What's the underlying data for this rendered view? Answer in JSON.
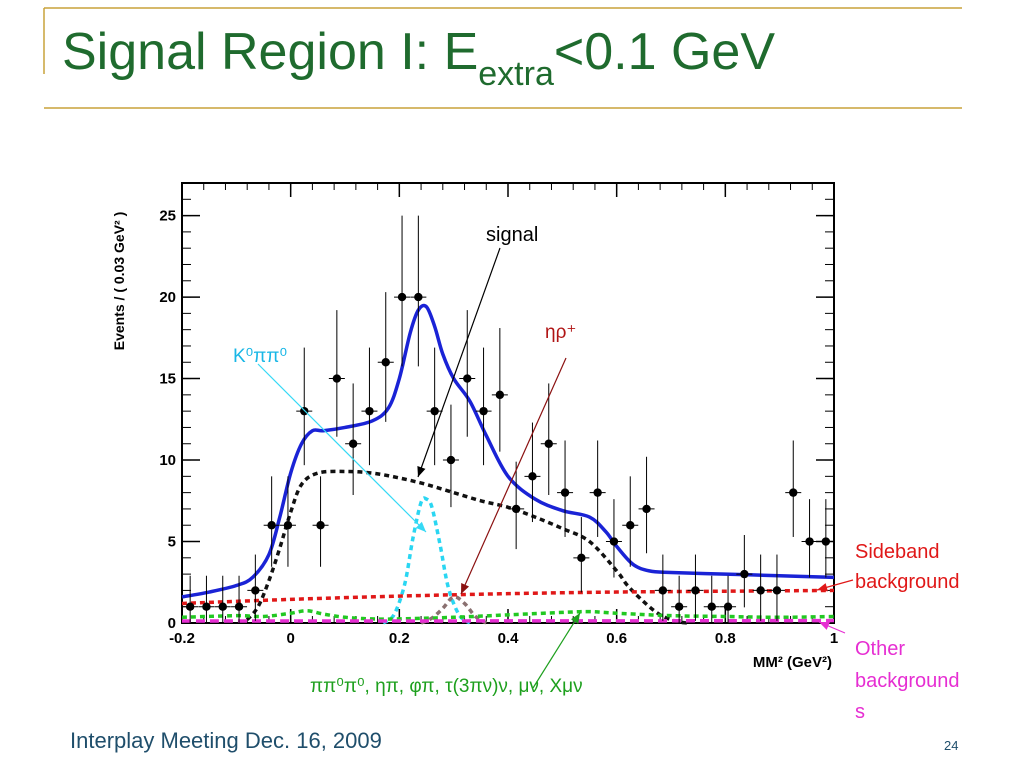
{
  "slide": {
    "title_main": "Signal Region I: E",
    "title_sub": "extra",
    "title_tail": "<0.1 GeV",
    "footer": "Interplay Meeting Dec. 16, 2009",
    "page_number": "24"
  },
  "chart_data": {
    "type": "scatter",
    "xlabel": "MM² (GeV²)",
    "ylabel": "Events / ( 0.03 GeV² )",
    "xlim": [
      -0.2,
      1.0
    ],
    "ylim": [
      0,
      27
    ],
    "xticks": [
      -0.2,
      0,
      0.2,
      0.4,
      0.6,
      0.8,
      1
    ],
    "xtick_labels": [
      "-0.2",
      "0",
      "0.2",
      "0.4",
      "0.6",
      "0.8",
      "1"
    ],
    "yticks": [
      0,
      5,
      10,
      15,
      20,
      25
    ],
    "ytick_labels": [
      "0",
      "5",
      "10",
      "15",
      "20",
      "25"
    ],
    "points": {
      "x": [
        -0.185,
        -0.155,
        -0.125,
        -0.095,
        -0.065,
        -0.035,
        -0.005,
        0.025,
        0.055,
        0.085,
        0.115,
        0.145,
        0.175,
        0.205,
        0.235,
        0.265,
        0.295,
        0.325,
        0.355,
        0.385,
        0.415,
        0.445,
        0.475,
        0.505,
        0.535,
        0.565,
        0.595,
        0.625,
        0.655,
        0.685,
        0.715,
        0.745,
        0.775,
        0.805,
        0.835,
        0.865,
        0.895,
        0.925,
        0.955,
        0.985
      ],
      "y": [
        1,
        1,
        1,
        1,
        2,
        6,
        6,
        13,
        6,
        15,
        11,
        13,
        16,
        20,
        20,
        13,
        10,
        15,
        13,
        14,
        7,
        9,
        11,
        8,
        4,
        8,
        5,
        6,
        7,
        2,
        1,
        2,
        1,
        1,
        3,
        2,
        2,
        8,
        5,
        5
      ],
      "err_hi": [
        1.9,
        1.9,
        1.9,
        1.9,
        2.2,
        3.0,
        3.0,
        3.9,
        3.0,
        4.2,
        3.7,
        3.9,
        4.3,
        5.0,
        5.0,
        3.9,
        3.4,
        4.2,
        3.9,
        4.1,
        2.9,
        3.3,
        3.7,
        3.2,
        2.5,
        3.2,
        2.6,
        3.0,
        3.2,
        2.2,
        1.9,
        2.2,
        1.9,
        1.9,
        2.4,
        2.2,
        2.2,
        3.2,
        2.6,
        2.6
      ]
    },
    "series": [
      {
        "name": "total fit",
        "color": "#1a23d6",
        "style": "solid",
        "x": [
          -0.2,
          -0.15,
          -0.1,
          -0.07,
          -0.04,
          -0.02,
          0,
          0.02,
          0.04,
          0.06,
          0.1,
          0.15,
          0.18,
          0.2,
          0.22,
          0.235,
          0.25,
          0.265,
          0.28,
          0.3,
          0.33,
          0.36,
          0.4,
          0.45,
          0.5,
          0.55,
          0.58,
          0.6,
          0.63,
          0.66,
          0.7,
          0.8,
          0.9,
          1.0
        ],
        "y": [
          1.6,
          1.9,
          2.3,
          2.8,
          4.2,
          6.5,
          9.2,
          11,
          11.8,
          11.8,
          12,
          12.4,
          13.2,
          15,
          17.8,
          19.2,
          19.4,
          18.2,
          16.5,
          15,
          13.6,
          11.5,
          9,
          7.6,
          6.9,
          6.5,
          5.6,
          4.7,
          3.6,
          3.2,
          3.1,
          3.0,
          2.9,
          2.8
        ]
      },
      {
        "name": "signal",
        "color": "#111111",
        "style": "dotted",
        "x": [
          -0.08,
          -0.06,
          -0.04,
          -0.02,
          0,
          0.02,
          0.05,
          0.1,
          0.15,
          0.2,
          0.25,
          0.3,
          0.35,
          0.4,
          0.45,
          0.5,
          0.55,
          0.6,
          0.62,
          0.65,
          0.68,
          0.71,
          0.73
        ],
        "y": [
          0.2,
          1.0,
          2.6,
          4.6,
          6.8,
          8.5,
          9.2,
          9.3,
          9.2,
          8.9,
          8.5,
          8.0,
          7.5,
          7.1,
          6.5,
          5.8,
          5.0,
          3.2,
          2.3,
          1.3,
          0.5,
          0.1,
          0
        ],
        "label": "signal"
      },
      {
        "name": "K0pi0",
        "color": "#2ad6f2",
        "style": "dotted",
        "x": [
          0.17,
          0.19,
          0.21,
          0.225,
          0.24,
          0.25,
          0.26,
          0.275,
          0.29,
          0.31,
          0.33
        ],
        "y": [
          0,
          0.5,
          2.4,
          5.2,
          7.4,
          7.6,
          7.1,
          4.8,
          2.2,
          0.5,
          0
        ],
        "label": "K⁰ππ⁰"
      },
      {
        "name": "eta rho",
        "color": "#8a7070",
        "style": "dotted",
        "x": [
          0.24,
          0.26,
          0.28,
          0.3,
          0.32,
          0.34,
          0.36
        ],
        "y": [
          0,
          0.3,
          0.9,
          1.6,
          1.2,
          0.4,
          0
        ],
        "label": "ηρ⁺"
      },
      {
        "name": "sideband background",
        "color": "#e01818",
        "style": "dotted",
        "x": [
          -0.2,
          0,
          0.2,
          0.4,
          0.6,
          0.8,
          1.0
        ],
        "y": [
          1.2,
          1.45,
          1.65,
          1.8,
          1.9,
          1.95,
          2.0
        ]
      },
      {
        "name": "pi pi0 pi0 etc",
        "color": "#22c822",
        "style": "dotted",
        "x": [
          -0.2,
          -0.1,
          -0.05,
          0,
          0.03,
          0.06,
          0.1,
          0.15,
          0.2,
          0.3,
          0.4,
          0.5,
          0.55,
          0.6,
          0.7,
          0.8,
          0.9,
          1.0
        ],
        "y": [
          0.35,
          0.45,
          0.4,
          0.6,
          0.75,
          0.55,
          0.35,
          0.25,
          0.25,
          0.35,
          0.5,
          0.65,
          0.7,
          0.6,
          0.45,
          0.4,
          0.35,
          0.4
        ]
      },
      {
        "name": "other backgrounds",
        "color": "#e62ed2",
        "style": "dashed",
        "x": [
          -0.2,
          0,
          0.2,
          0.4,
          0.6,
          0.8,
          1.0
        ],
        "y": [
          0.12,
          0.12,
          0.12,
          0.13,
          0.13,
          0.14,
          0.15
        ]
      }
    ],
    "annotations": {
      "signal": "signal",
      "k0": "K⁰ππ⁰",
      "etarho": "ηρ⁺",
      "sideband_1": "Sideband",
      "sideband_2": "background",
      "other_1": "Other",
      "other_2": "background",
      "other_3": "s",
      "green": "ππ⁰π⁰, ηπ, φπ, τ(3πν)ν, μν, Xμν"
    }
  }
}
